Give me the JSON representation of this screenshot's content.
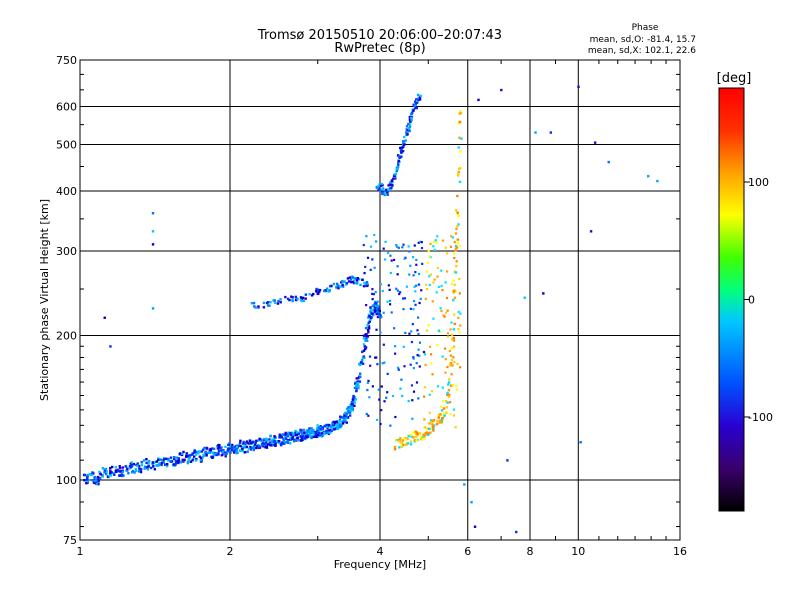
{
  "chart_data": {
    "type": "scatter",
    "title": "Tromsø 20150510 20:06:00–20:07:43",
    "subtitle": "RwPretec (8p)",
    "xlabel": "Frequency [MHz]",
    "ylabel": "Stationary phase Virtual Height [km]",
    "x_scale": "log",
    "y_scale": "log",
    "xlim": [
      1,
      16
    ],
    "ylim": [
      75,
      750
    ],
    "x_ticks": [
      1,
      2,
      4,
      6,
      8,
      10,
      16
    ],
    "y_ticks": [
      75,
      100,
      200,
      300,
      400,
      500,
      600,
      750
    ],
    "grid": true,
    "phase_box": {
      "title": "Phase",
      "line1": "mean, sd,O: -81.4, 15.7",
      "line2": "mean, sd,X: 102.1, 22.6"
    },
    "colorbar": {
      "label": "[deg]",
      "ticks": [
        100,
        0,
        -100
      ],
      "range": [
        -180,
        180
      ],
      "colors": [
        "#000000",
        "#3a006b",
        "#2a00d0",
        "#0050ff",
        "#00c8ff",
        "#00ff80",
        "#40ff00",
        "#ffff00",
        "#ffa000",
        "#ff3000",
        "#ff0000"
      ]
    },
    "series": [
      {
        "values": [
          [
            1.02,
            100
          ],
          [
            1.05,
            102
          ],
          [
            1.08,
            100
          ],
          [
            1.1,
            103
          ],
          [
            1.14,
            104
          ],
          [
            1.18,
            105
          ],
          [
            1.22,
            104
          ],
          [
            1.26,
            107
          ],
          [
            1.3,
            106
          ],
          [
            1.35,
            108
          ],
          [
            1.4,
            107
          ],
          [
            1.45,
            110
          ],
          [
            1.5,
            109
          ],
          [
            1.55,
            110
          ],
          [
            1.6,
            112
          ],
          [
            1.65,
            111
          ],
          [
            1.7,
            113
          ],
          [
            1.75,
            112
          ],
          [
            1.8,
            115
          ],
          [
            1.85,
            114
          ],
          [
            1.9,
            116
          ],
          [
            1.95,
            115
          ],
          [
            2.0,
            117
          ],
          [
            2.05,
            116
          ],
          [
            2.1,
            118
          ],
          [
            2.15,
            117
          ],
          [
            2.2,
            119
          ],
          [
            2.25,
            118
          ],
          [
            2.3,
            120
          ],
          [
            2.35,
            119
          ],
          [
            2.4,
            121
          ],
          [
            2.45,
            120
          ],
          [
            2.5,
            122
          ],
          [
            2.55,
            121
          ],
          [
            2.6,
            123
          ],
          [
            2.65,
            122
          ],
          [
            2.7,
            124
          ],
          [
            2.75,
            123
          ],
          [
            2.8,
            125
          ],
          [
            2.85,
            124
          ],
          [
            2.9,
            126
          ],
          [
            2.95,
            125
          ],
          [
            3.0,
            127
          ],
          [
            3.05,
            126
          ],
          [
            3.1,
            128
          ],
          [
            3.15,
            127
          ],
          [
            3.2,
            129
          ],
          [
            3.25,
            130
          ],
          [
            3.3,
            131
          ],
          [
            3.35,
            133
          ],
          [
            3.4,
            135
          ],
          [
            3.45,
            138
          ],
          [
            3.5,
            142
          ],
          [
            3.55,
            148
          ],
          [
            3.6,
            158
          ],
          [
            3.65,
            170
          ],
          [
            3.7,
            185
          ],
          [
            3.75,
            200
          ],
          [
            3.8,
            215
          ],
          [
            3.85,
            225
          ],
          [
            3.9,
            230
          ],
          [
            3.95,
            226
          ],
          [
            4.0,
            222
          ]
        ]
      },
      {
        "values": [
          [
            2.2,
            230
          ],
          [
            2.35,
            232
          ],
          [
            2.5,
            235
          ],
          [
            2.65,
            240
          ],
          [
            2.75,
            236
          ],
          [
            2.9,
            245
          ],
          [
            3.0,
            248
          ],
          [
            3.1,
            250
          ],
          [
            3.2,
            252
          ],
          [
            3.3,
            255
          ],
          [
            3.4,
            258
          ],
          [
            3.5,
            262
          ],
          [
            3.6,
            260
          ],
          [
            3.7,
            258
          ],
          [
            3.8,
            255
          ]
        ]
      },
      {
        "values": [
          [
            3.95,
            405
          ],
          [
            4.0,
            410
          ],
          [
            4.05,
            400
          ],
          [
            4.1,
            395
          ],
          [
            4.15,
            405
          ],
          [
            4.2,
            410
          ],
          [
            4.25,
            420
          ],
          [
            4.3,
            440
          ],
          [
            4.35,
            460
          ],
          [
            4.4,
            480
          ],
          [
            4.45,
            500
          ],
          [
            4.5,
            520
          ],
          [
            4.55,
            540
          ],
          [
            4.6,
            560
          ],
          [
            4.65,
            580
          ],
          [
            4.7,
            600
          ],
          [
            4.75,
            620
          ],
          [
            4.8,
            635
          ]
        ]
      },
      {
        "values": [
          [
            4.3,
            118
          ],
          [
            4.4,
            119
          ],
          [
            4.5,
            120
          ],
          [
            4.6,
            121
          ],
          [
            4.7,
            123
          ],
          [
            4.8,
            124
          ],
          [
            4.9,
            126
          ],
          [
            5.0,
            128
          ],
          [
            5.1,
            130
          ],
          [
            5.2,
            133
          ],
          [
            5.3,
            136
          ],
          [
            5.4,
            140
          ],
          [
            5.5,
            150
          ],
          [
            5.55,
            170
          ],
          [
            5.6,
            200
          ],
          [
            5.65,
            260
          ],
          [
            5.7,
            330
          ],
          [
            5.75,
            420
          ],
          [
            5.78,
            520
          ],
          [
            5.8,
            600
          ]
        ]
      }
    ]
  }
}
